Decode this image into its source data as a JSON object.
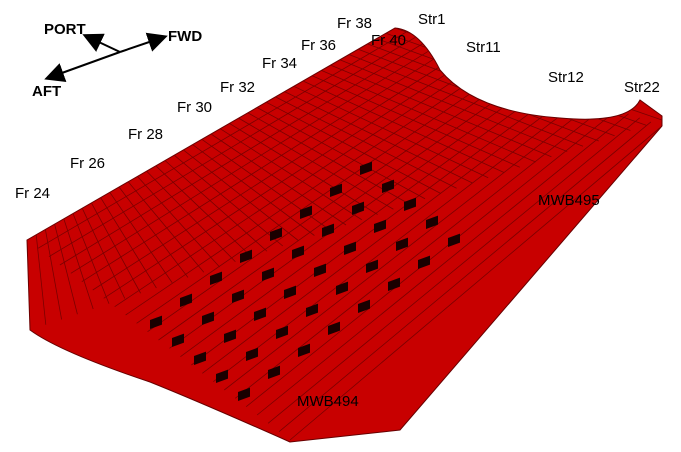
{
  "orientation": {
    "port": "PORT",
    "fwd": "FWD",
    "aft": "AFT"
  },
  "frames": [
    "Fr 24",
    "Fr 26",
    "Fr 28",
    "Fr 30",
    "Fr 32",
    "Fr 34",
    "Fr 36",
    "Fr 38",
    "Fr 40"
  ],
  "stringers": [
    "Str1",
    "Str11",
    "Str12",
    "Str22"
  ],
  "bulkheads": [
    "MWB495",
    "MWB494"
  ]
}
